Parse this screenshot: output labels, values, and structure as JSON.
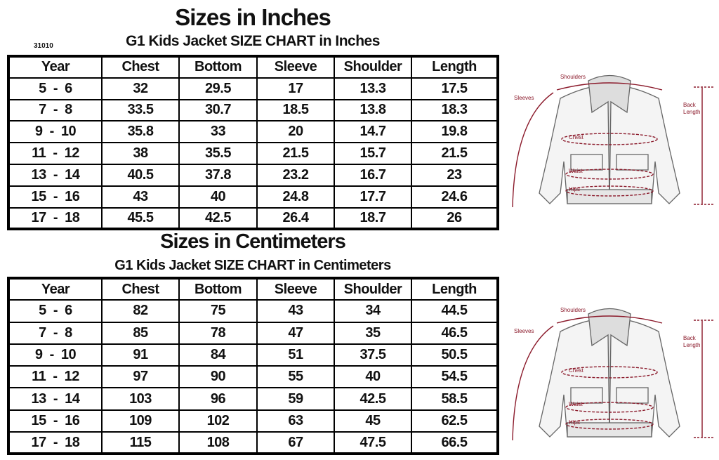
{
  "inches": {
    "title": "Sizes in Inches",
    "subtitle": "G1 Kids Jacket  SIZE CHART  in Inches",
    "code": "31010",
    "headers": [
      "Year",
      "Chest",
      "Bottom",
      "Sleeve",
      "Shoulder",
      "Length"
    ],
    "rows": [
      [
        "5  -  6",
        "32",
        "29.5",
        "17",
        "13.3",
        "17.5"
      ],
      [
        "7  -  8",
        "33.5",
        "30.7",
        "18.5",
        "13.8",
        "18.3"
      ],
      [
        "9  -  10",
        "35.8",
        "33",
        "20",
        "14.7",
        "19.8"
      ],
      [
        "11  -  12",
        "38",
        "35.5",
        "21.5",
        "15.7",
        "21.5"
      ],
      [
        "13  -  14",
        "40.5",
        "37.8",
        "23.2",
        "16.7",
        "23"
      ],
      [
        "15  -  16",
        "43",
        "40",
        "24.8",
        "17.7",
        "24.6"
      ],
      [
        "17  -  18",
        "45.5",
        "42.5",
        "26.4",
        "18.7",
        "26"
      ]
    ]
  },
  "centimeters": {
    "title": "Sizes in Centimeters",
    "subtitle": "G1 Kids Jacket SIZE CHART  in Centimeters",
    "headers": [
      "Year",
      "Chest",
      "Bottom",
      "Sleeve",
      "Shoulder",
      "Length"
    ],
    "rows": [
      [
        "5  -  6",
        "82",
        "75",
        "43",
        "34",
        "44.5"
      ],
      [
        "7  -  8",
        "85",
        "78",
        "47",
        "35",
        "46.5"
      ],
      [
        "9  -  10",
        "91",
        "84",
        "51",
        "37.5",
        "50.5"
      ],
      [
        "11  -  12",
        "97",
        "90",
        "55",
        "40",
        "54.5"
      ],
      [
        "13  -  14",
        "103",
        "96",
        "59",
        "42.5",
        "58.5"
      ],
      [
        "15  -  16",
        "109",
        "102",
        "63",
        "45",
        "62.5"
      ],
      [
        "17  -  18",
        "115",
        "108",
        "67",
        "47.5",
        "66.5"
      ]
    ]
  },
  "diagram": {
    "labels": {
      "shoulders": "Shoulders",
      "sleeves": "Sleeves",
      "chest": "Chest",
      "waist": "Waist",
      "hips": "Hips",
      "back1": "Back",
      "back2": "Length"
    },
    "accent": "#8b1a2b"
  }
}
